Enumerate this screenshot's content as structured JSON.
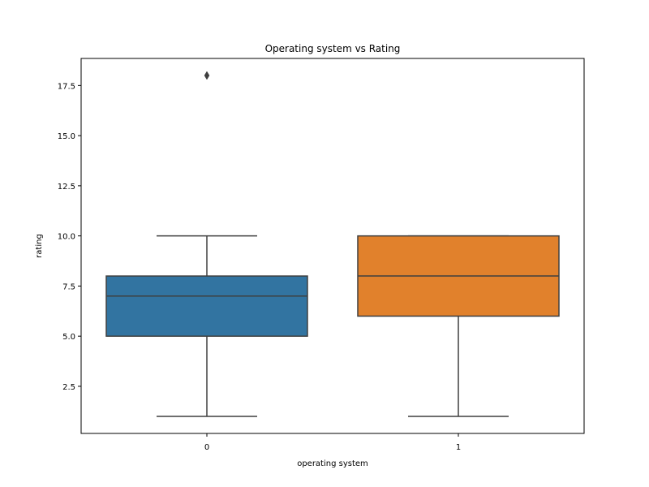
{
  "chart_data": {
    "type": "boxplot",
    "title": "Operating system vs Rating",
    "xlabel": "operating system",
    "ylabel": "rating",
    "ylim": [
      0.15,
      18.85
    ],
    "yticks": [
      2.5,
      5.0,
      7.5,
      10.0,
      12.5,
      15.0,
      17.5
    ],
    "ytick_labels": [
      "2.5",
      "5.0",
      "7.5",
      "10.0",
      "12.5",
      "15.0",
      "17.5"
    ],
    "categories": [
      "0",
      "1"
    ],
    "boxes": [
      {
        "category": "0",
        "whisker_low": 1,
        "q1": 5,
        "median": 7,
        "q3": 8,
        "whisker_high": 10,
        "outliers": [
          18
        ],
        "color": "#3274a1"
      },
      {
        "category": "1",
        "whisker_low": 1,
        "q1": 6,
        "median": 8,
        "q3": 10,
        "whisker_high": 10,
        "outliers": [],
        "color": "#e1812c"
      }
    ],
    "line_color": "#3f3f3f",
    "grid": false
  }
}
